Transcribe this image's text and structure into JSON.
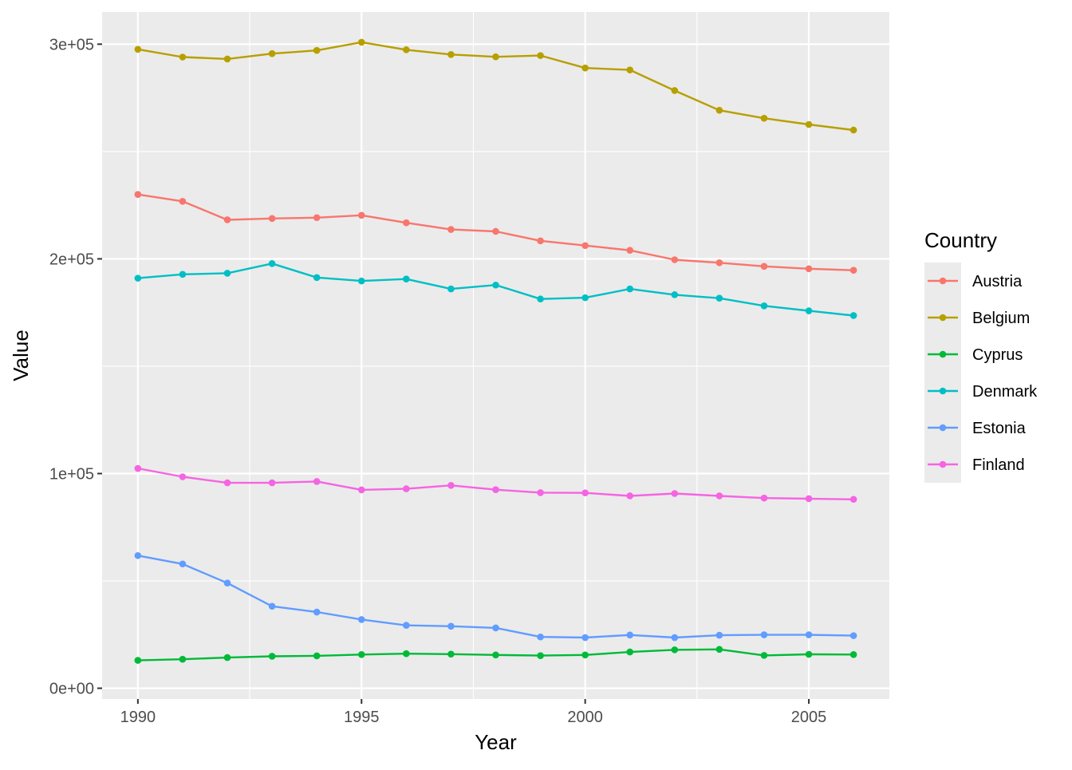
{
  "chart_data": {
    "type": "line",
    "title": "",
    "xlabel": "Year",
    "ylabel": "Value",
    "xlim": [
      1989.2,
      2006.8
    ],
    "ylim": [
      -5000,
      315000
    ],
    "x_ticks": [
      1990,
      1995,
      2000,
      2005
    ],
    "x_tick_labels": [
      "1990",
      "1995",
      "2000",
      "2005"
    ],
    "x_minor_ticks": [
      1992.5,
      1997.5,
      2002.5
    ],
    "y_ticks": [
      0,
      100000,
      200000,
      300000
    ],
    "y_tick_labels": [
      "0e+00",
      "1e+05",
      "2e+05",
      "3e+05"
    ],
    "y_minor_ticks": [
      50000,
      150000,
      250000
    ],
    "grid": true,
    "legend_title": "Country",
    "legend_position": "right",
    "x": [
      1990,
      1991,
      1992,
      1993,
      1994,
      1995,
      1996,
      1997,
      1998,
      1999,
      2000,
      2001,
      2002,
      2003,
      2004,
      2005,
      2006
    ],
    "series": [
      {
        "name": "Austria",
        "color": "#F8766D",
        "values": [
          230000,
          226800,
          218200,
          218800,
          219200,
          220300,
          216800,
          213700,
          212800,
          208400,
          206200,
          204000,
          199600,
          198200,
          196500,
          195400,
          194700
        ]
      },
      {
        "name": "Belgium",
        "color": "#B79F00",
        "values": [
          297600,
          294000,
          293100,
          295600,
          297100,
          300900,
          297400,
          295200,
          294100,
          294700,
          288900,
          288000,
          278400,
          269200,
          265500,
          262600,
          260000
        ]
      },
      {
        "name": "Cyprus",
        "color": "#00BA38",
        "values": [
          13000,
          13500,
          14300,
          14900,
          15100,
          15700,
          16100,
          15900,
          15500,
          15200,
          15500,
          16900,
          17900,
          18100,
          15300,
          15800,
          15700
        ]
      },
      {
        "name": "Denmark",
        "color": "#00BFC4",
        "values": [
          191000,
          192800,
          193300,
          197800,
          191300,
          189700,
          190600,
          186000,
          187800,
          181300,
          181900,
          186000,
          183300,
          181700,
          178100,
          175800,
          173600
        ]
      },
      {
        "name": "Estonia",
        "color": "#619CFF",
        "values": [
          61800,
          57900,
          49000,
          38200,
          35500,
          32000,
          29300,
          28900,
          28100,
          23900,
          23600,
          24800,
          23600,
          24700,
          24900,
          24900,
          24500
        ]
      },
      {
        "name": "Finland",
        "color": "#F564E3",
        "values": [
          102400,
          98500,
          95700,
          95700,
          96300,
          92400,
          92900,
          94500,
          92500,
          91100,
          91000,
          89600,
          90700,
          89600,
          88600,
          88300,
          88000
        ]
      }
    ]
  }
}
